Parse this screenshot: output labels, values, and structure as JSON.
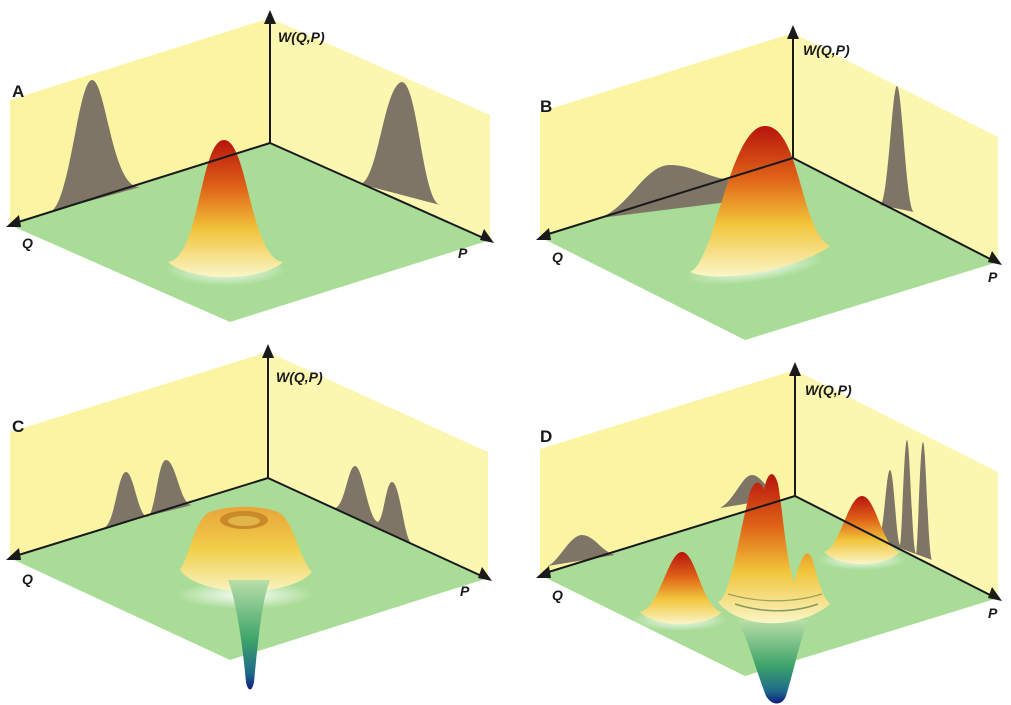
{
  "panels": [
    {
      "letter": "A",
      "w_label": "W(Q,P)",
      "q_label": "Q",
      "p_label": "P"
    },
    {
      "letter": "B",
      "w_label": "W(Q,P)",
      "q_label": "Q",
      "p_label": "P"
    },
    {
      "letter": "C",
      "w_label": "W(Q,P)",
      "q_label": "Q",
      "p_label": "P"
    },
    {
      "letter": "D",
      "w_label": "W(Q,P)",
      "q_label": "Q",
      "p_label": "P"
    }
  ],
  "colors": {
    "wall": "#fbf5a3",
    "floor": "#a6dc95",
    "marginal": "#7e7566",
    "axis": "#1a1a1a",
    "peak_top": "#c41a10",
    "peak_mid": "#e88b1c",
    "peak_base": "#f4f0a8",
    "negative": "#1a2a8c"
  }
}
